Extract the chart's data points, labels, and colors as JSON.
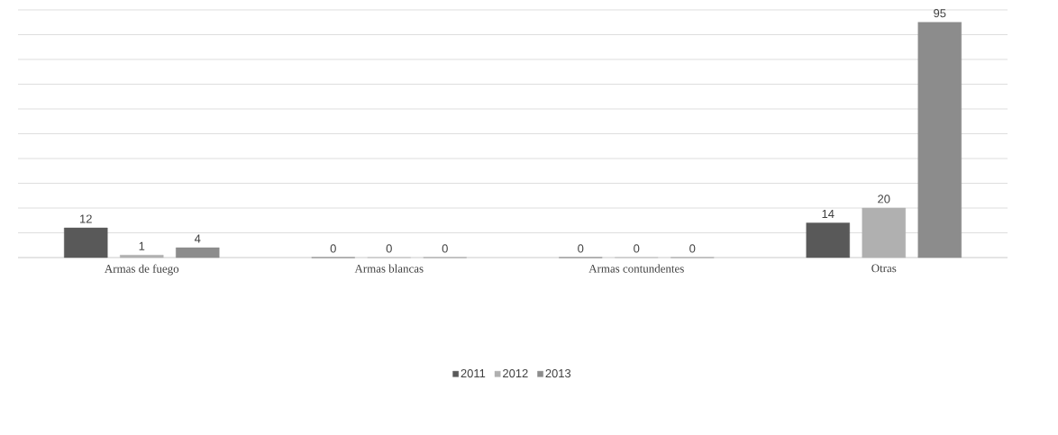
{
  "chart_data": {
    "type": "bar",
    "categories": [
      "Armas de fuego",
      "Armas blancas",
      "Armas contundentes",
      "Otras"
    ],
    "series": [
      {
        "name": "2011",
        "color": "#595959",
        "values": [
          12,
          0,
          0,
          14
        ]
      },
      {
        "name": "2012",
        "color": "#b0b0b0",
        "values": [
          1,
          0,
          0,
          20
        ]
      },
      {
        "name": "2013",
        "color": "#8c8c8c",
        "values": [
          4,
          0,
          0,
          95
        ]
      }
    ],
    "ylim": [
      0,
      100
    ],
    "yticks": [
      {
        "value": 0,
        "label": null
      },
      {
        "value": 10,
        "label": null
      },
      {
        "value": 20,
        "label": null
      },
      {
        "value": 30,
        "label": null
      },
      {
        "value": 40,
        "label": null
      },
      {
        "value": 50,
        "label": null
      },
      {
        "value": 60,
        "label": null
      },
      {
        "value": 70,
        "label": null
      },
      {
        "value": 80,
        "label": null
      },
      {
        "value": 90,
        "label": null
      },
      {
        "value": 100,
        "label": null
      }
    ],
    "tick_labels": "x",
    "grid": "y",
    "legend": "bottom",
    "data_labels": true
  }
}
